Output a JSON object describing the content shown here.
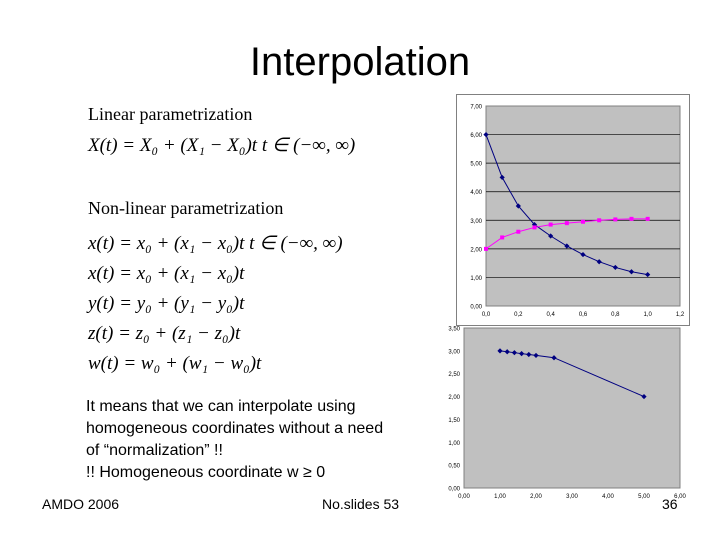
{
  "slide": {
    "title": "Interpolation",
    "linear_heading": "Linear parametrization",
    "linear_eq": "X(t) = X₀ + (X₁ − X₀)t   t ∈ (−∞, ∞)",
    "nonlinear_heading": "Non-linear parametrization",
    "nonlinear_eqs": [
      "x(t) = x₀ + (x₁ − x₀)t   t ∈ (−∞, ∞)",
      "x(t) = x₀ + (x₁ − x₀)t",
      "y(t) = y₀ + (y₁ − y₀)t",
      "z(t) = z₀ + (z₁ − z₀)t",
      "w(t) = w₀ + (w₁ − w₀)t"
    ],
    "note_lines": [
      "It means that we can interpolate using",
      "homogeneous coordinates without a need",
      "of “normalization” !!",
      "!! Homogeneous coordinate w ≥ 0"
    ],
    "footer_left": "AMDO 2006",
    "footer_center": "No.slides 53",
    "footer_right": "36"
  },
  "colors": {
    "plot_bg": "#c0c0c0",
    "series_blue": "#000080",
    "series_magenta": "#ff00ff"
  },
  "chart_data": [
    {
      "type": "line",
      "x": [
        0.0,
        0.1,
        0.2,
        0.3,
        0.4,
        0.5,
        0.6,
        0.7,
        0.8,
        0.9,
        1.0
      ],
      "xticks": [
        "0,0",
        "0,2",
        "0,4",
        "0,6",
        "0,8",
        "1,0",
        "1,2"
      ],
      "yticks": [
        "0,00",
        "1,00",
        "2,00",
        "3,00",
        "4,00",
        "5,00",
        "6,00",
        "7,00"
      ],
      "xlim": [
        0,
        1.2
      ],
      "ylim": [
        0,
        7
      ],
      "series": [
        {
          "values": [
            6.0,
            4.5,
            3.5,
            2.85,
            2.45,
            2.1,
            1.8,
            1.55,
            1.35,
            1.2,
            1.1
          ]
        },
        {
          "values": [
            2.0,
            2.4,
            2.6,
            2.75,
            2.85,
            2.9,
            2.95,
            3.0,
            3.03,
            3.05,
            3.05
          ]
        }
      ]
    },
    {
      "type": "line",
      "x": [
        1.0,
        1.2,
        1.4,
        1.6,
        1.8,
        2.0,
        2.5,
        5.0
      ],
      "xticks": [
        "0,00",
        "1,00",
        "2,00",
        "3,00",
        "4,00",
        "5,00",
        "6,00"
      ],
      "yticks": [
        "0,00",
        "0,50",
        "1,00",
        "1,50",
        "2,00",
        "2,50",
        "3,00",
        "3,50"
      ],
      "xlim": [
        0,
        6
      ],
      "ylim": [
        0,
        3.5
      ],
      "series": [
        {
          "values": [
            3.0,
            2.98,
            2.96,
            2.94,
            2.92,
            2.9,
            2.85,
            2.0
          ]
        }
      ]
    }
  ]
}
